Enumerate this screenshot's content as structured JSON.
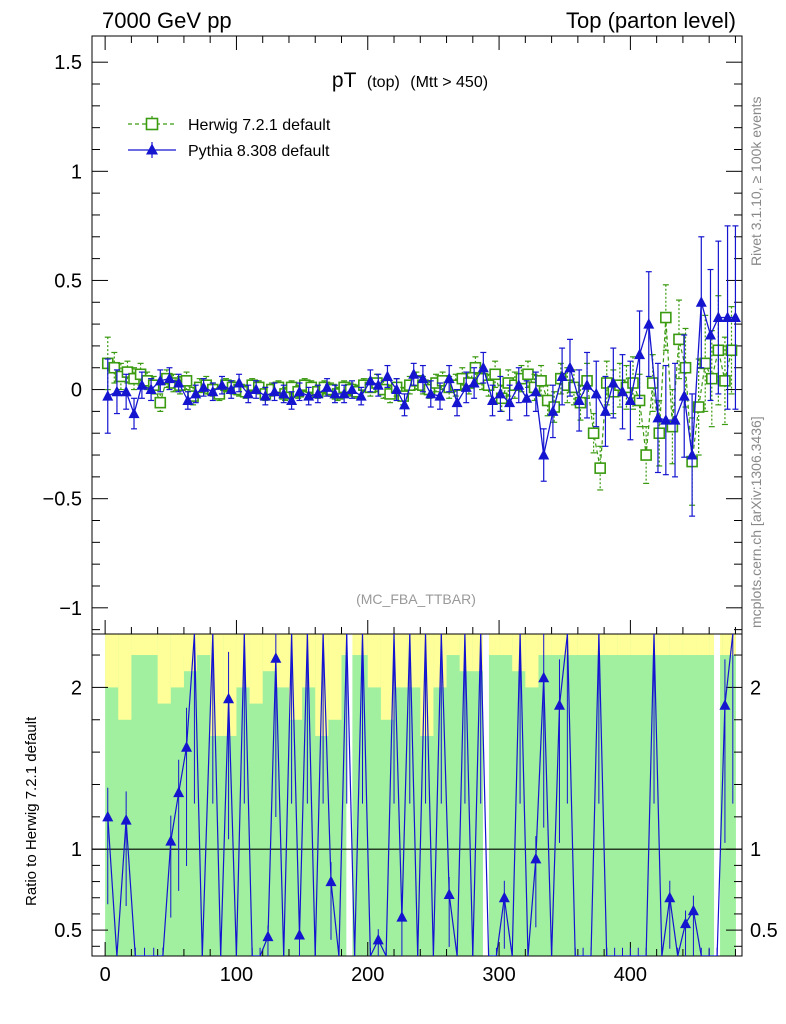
{
  "header": {
    "left": "7000 GeV pp",
    "right": "Top (parton level)"
  },
  "side_text": {
    "rivet": "Rivet 3.1.10, ≥ 100k events",
    "mcplots": "mcplots.cern.ch [arXiv:1306.3436]"
  },
  "analysis_id": "(MC_FBA_TTBAR)",
  "colors": {
    "herwig": "#3a9a10",
    "pythia": "#1515d0",
    "band_green": "#a0f0a0",
    "band_yellow": "#ffff99"
  },
  "chart_data": [
    {
      "type": "scatter",
      "title": {
        "main": "pT",
        "sub1": "(top)",
        "sub2": "(Mtt > 450)"
      },
      "xlim": [
        -10,
        485
      ],
      "ylim": [
        -1.12,
        1.62
      ],
      "yticks": [
        1.5,
        1,
        0.5,
        0,
        -0.5,
        -1
      ],
      "ytick_labels": [
        "1.5",
        "1",
        "0.5",
        "0",
        "−0.5",
        "−1"
      ],
      "legend": {
        "placement": "top-left"
      },
      "series": [
        {
          "name": "Herwig 7.2.1 default",
          "marker": "open-square",
          "line": "dashed",
          "x": [
            2,
            7,
            12,
            17,
            22,
            27,
            32,
            37,
            42,
            47,
            52,
            57,
            62,
            67,
            72,
            77,
            82,
            87,
            92,
            97,
            102,
            107,
            112,
            117,
            122,
            127,
            132,
            137,
            142,
            147,
            152,
            157,
            162,
            167,
            172,
            177,
            182,
            187,
            192,
            197,
            202,
            207,
            212,
            217,
            222,
            227,
            232,
            237,
            242,
            247,
            252,
            257,
            262,
            267,
            272,
            277,
            282,
            287,
            292,
            297,
            302,
            307,
            312,
            317,
            322,
            327,
            332,
            337,
            342,
            347,
            352,
            357,
            362,
            367,
            372,
            377,
            382,
            387,
            392,
            397,
            402,
            407,
            412,
            417,
            422,
            427,
            432,
            437,
            442,
            447,
            452,
            457,
            462,
            467,
            472,
            477
          ],
          "y": [
            0.12,
            0.1,
            0.06,
            0.08,
            0.05,
            0.07,
            0.04,
            0.02,
            -0.06,
            0.05,
            0.03,
            0.02,
            0.04,
            -0.03,
            0.01,
            0.02,
            0.0,
            -0.02,
            0.02,
            0.01,
            0.0,
            -0.01,
            0.02,
            0.01,
            -0.02,
            0.0,
            0.01,
            -0.02,
            0.01,
            -0.01,
            0.02,
            0.01,
            -0.01,
            0.01,
            0.0,
            -0.02,
            0.01,
            0.0,
            -0.01,
            0.02,
            0.01,
            0.03,
            0.0,
            -0.02,
            0.01,
            -0.03,
            0.02,
            0.04,
            0.02,
            0.0,
            0.03,
            0.04,
            0.01,
            0.02,
            0.05,
            0.03,
            0.1,
            0.05,
            0.02,
            0.07,
            -0.04,
            0.03,
            0.02,
            0.05,
            0.07,
            0.01,
            0.04,
            -0.05,
            -0.08,
            0.05,
            0.02,
            0.01,
            -0.06,
            0.04,
            -0.2,
            -0.36,
            0.03,
            -0.01,
            0.02,
            0.01,
            0.03,
            -0.05,
            -0.3,
            0.03,
            -0.2,
            0.33,
            -0.17,
            0.23,
            0.1,
            -0.33,
            -0.08,
            0.12,
            0.05,
            0.18,
            0.04,
            0.18
          ],
          "err": [
            0.12,
            0.07,
            0.06,
            0.05,
            0.05,
            0.05,
            0.04,
            0.04,
            0.04,
            0.04,
            0.04,
            0.04,
            0.04,
            0.04,
            0.04,
            0.04,
            0.03,
            0.03,
            0.03,
            0.03,
            0.03,
            0.03,
            0.03,
            0.03,
            0.03,
            0.03,
            0.03,
            0.03,
            0.03,
            0.03,
            0.03,
            0.03,
            0.03,
            0.03,
            0.03,
            0.03,
            0.03,
            0.03,
            0.03,
            0.03,
            0.04,
            0.04,
            0.04,
            0.04,
            0.04,
            0.04,
            0.04,
            0.04,
            0.04,
            0.04,
            0.04,
            0.04,
            0.05,
            0.05,
            0.05,
            0.05,
            0.05,
            0.05,
            0.05,
            0.06,
            0.06,
            0.06,
            0.06,
            0.06,
            0.06,
            0.06,
            0.07,
            0.07,
            0.07,
            0.07,
            0.08,
            0.08,
            0.08,
            0.08,
            0.09,
            0.1,
            0.1,
            0.1,
            0.1,
            0.1,
            0.12,
            0.12,
            0.13,
            0.13,
            0.15,
            0.15,
            0.17,
            0.18,
            0.18,
            0.2,
            0.22,
            0.22,
            0.22,
            0.25,
            0.2,
            0.2
          ]
        },
        {
          "name": "Pythia 8.308 default",
          "marker": "filled-triangle",
          "line": "solid",
          "x": [
            2,
            9,
            16,
            22,
            28,
            35,
            42,
            49,
            56,
            63,
            69,
            75,
            82,
            89,
            96,
            102,
            109,
            115,
            122,
            129,
            136,
            142,
            148,
            155,
            162,
            169,
            175,
            182,
            188,
            195,
            202,
            208,
            215,
            222,
            228,
            235,
            242,
            248,
            255,
            262,
            268,
            275,
            281,
            288,
            295,
            301,
            308,
            315,
            321,
            328,
            334,
            341,
            348,
            354,
            361,
            367,
            374,
            381,
            387,
            394,
            400,
            407,
            414,
            421,
            427,
            434,
            441,
            447,
            454,
            461,
            467,
            474,
            480
          ],
          "y": [
            -0.03,
            -0.01,
            -0.01,
            -0.11,
            0.02,
            0.0,
            0.04,
            0.05,
            0.03,
            -0.05,
            -0.02,
            0.01,
            -0.01,
            0.02,
            0.0,
            0.03,
            -0.02,
            0.0,
            -0.03,
            -0.01,
            -0.02,
            -0.05,
            -0.01,
            -0.03,
            -0.02,
            0.01,
            -0.02,
            -0.02,
            0.0,
            -0.03,
            0.04,
            0.02,
            0.06,
            0.0,
            -0.07,
            0.07,
            0.05,
            -0.02,
            -0.03,
            0.05,
            -0.06,
            0.01,
            0.03,
            0.1,
            -0.05,
            -0.02,
            -0.06,
            0.02,
            -0.04,
            -0.01,
            -0.3,
            -0.1,
            0.06,
            0.1,
            -0.05,
            0.02,
            -0.02,
            -0.1,
            0.03,
            -0.01,
            -0.05,
            0.16,
            0.3,
            -0.13,
            -0.14,
            -0.14,
            -0.03,
            -0.3,
            0.4,
            0.25,
            0.33,
            0.33,
            0.33
          ],
          "err": [
            0.17,
            0.1,
            0.08,
            0.07,
            0.06,
            0.05,
            0.05,
            0.05,
            0.04,
            0.04,
            0.04,
            0.04,
            0.04,
            0.04,
            0.04,
            0.04,
            0.04,
            0.04,
            0.04,
            0.04,
            0.04,
            0.04,
            0.04,
            0.04,
            0.04,
            0.04,
            0.04,
            0.04,
            0.04,
            0.04,
            0.05,
            0.05,
            0.05,
            0.05,
            0.05,
            0.05,
            0.06,
            0.06,
            0.06,
            0.06,
            0.06,
            0.07,
            0.07,
            0.07,
            0.07,
            0.08,
            0.08,
            0.08,
            0.08,
            0.09,
            0.12,
            0.12,
            0.13,
            0.13,
            0.14,
            0.15,
            0.15,
            0.16,
            0.16,
            0.17,
            0.18,
            0.2,
            0.24,
            0.25,
            0.25,
            0.26,
            0.28,
            0.28,
            0.3,
            0.3,
            0.35,
            0.42,
            0.42
          ]
        }
      ]
    },
    {
      "type": "line",
      "ylabel": "Ratio to Herwig 7.2.1 default",
      "xlim": [
        -10,
        485
      ],
      "ylim": [
        0.34,
        2.33
      ],
      "xticks": [
        0,
        100,
        200,
        300,
        400
      ],
      "xtick_labels": [
        "0",
        "100",
        "200",
        "300",
        "400"
      ],
      "yticks": [
        0.5,
        1,
        2
      ],
      "ytick_labels": [
        "0.5",
        "1",
        "2"
      ],
      "band": {
        "x": [
          0,
          10,
          20,
          30,
          40,
          50,
          60,
          70,
          80,
          90,
          100,
          110,
          120,
          130,
          140,
          150,
          160,
          170,
          180,
          190,
          200,
          210,
          220,
          230,
          240,
          250,
          260,
          270,
          280,
          290,
          300,
          310,
          320,
          330,
          340,
          350,
          360,
          370,
          380,
          390,
          400,
          410,
          420,
          430,
          440,
          450,
          460,
          470
        ],
        "green_upper": [
          2.33,
          2.33,
          2.33,
          2.33,
          2.33,
          2.33,
          2.2,
          2.33,
          2.33,
          2.33,
          2.33,
          2.33,
          2.33,
          2.33,
          2.33,
          2.33,
          2.33,
          2.33,
          2.33,
          2.33,
          2.33,
          2.33,
          2.33,
          2.33,
          2.33,
          2.33,
          2.33,
          2.33,
          2.33,
          2.33,
          2.33,
          2.33,
          2.33,
          2.33,
          2.33,
          2.33,
          2.33,
          2.33,
          2.33,
          2.33,
          2.33,
          2.33,
          2.33,
          2.33,
          2.33,
          2.33,
          2.33,
          2.33
        ],
        "yellow_upper": [
          2.33,
          2.33,
          2.33,
          2.33,
          2.33,
          2.33,
          2.33,
          2.33,
          2.33,
          2.33,
          2.33,
          2.33,
          2.33,
          2.33,
          2.33,
          2.33,
          2.33,
          2.33,
          2.33,
          2.33,
          2.33,
          2.33,
          2.33,
          2.33,
          2.33,
          2.33,
          2.33,
          2.33,
          2.33,
          2.33,
          2.33,
          2.33,
          2.33,
          2.33,
          2.33,
          2.33,
          2.33,
          2.33,
          2.33,
          2.33,
          2.33,
          2.33,
          2.33,
          2.33,
          2.33,
          2.33,
          2.33,
          2.33
        ],
        "yellow_lower": [
          2.0,
          1.8,
          2.2,
          2.2,
          1.9,
          2.0,
          2.1,
          2.2,
          1.7,
          1.7,
          2.0,
          1.9,
          2.1,
          2.0,
          1.8,
          2.0,
          1.7,
          1.8,
          2.2,
          2.2,
          2.0,
          1.8,
          2.0,
          2.0,
          1.7,
          2.0,
          2.2,
          2.1,
          2.1,
          2.2,
          2.2,
          2.1,
          2.0,
          2.2,
          2.2,
          2.2,
          2.2,
          2.2,
          2.2,
          2.2,
          2.2,
          2.2,
          2.2,
          2.2,
          2.2,
          2.2,
          2.2,
          2.2
        ]
      },
      "gaps_x": [
        186,
        290,
        466
      ],
      "series": [
        {
          "marker": "filled-triangle",
          "x": [
            2,
            9,
            16,
            23,
            30,
            37,
            44,
            50,
            56,
            62,
            68,
            74,
            82,
            88,
            94,
            100,
            106,
            112,
            118,
            124,
            130,
            136,
            142,
            148,
            154,
            160,
            166,
            172,
            178,
            184,
            190,
            196,
            202,
            208,
            214,
            220,
            226,
            232,
            238,
            244,
            250,
            256,
            262,
            268,
            274,
            280,
            286,
            292,
            298,
            304,
            310,
            316,
            322,
            328,
            334,
            340,
            346,
            352,
            358,
            364,
            370,
            376,
            382,
            388,
            394,
            400,
            406,
            412,
            418,
            424,
            430,
            436,
            442,
            448,
            454,
            460,
            466,
            472,
            478
          ],
          "y": [
            1.2,
            0.34,
            1.18,
            0.34,
            0.34,
            0.34,
            0.34,
            1.05,
            1.35,
            1.63,
            2.33,
            0.34,
            2.33,
            0.34,
            1.93,
            0.34,
            2.33,
            0.34,
            0.34,
            0.46,
            2.18,
            0.34,
            2.33,
            0.47,
            2.33,
            0.34,
            2.33,
            0.8,
            0.34,
            2.33,
            0.34,
            2.33,
            0.34,
            0.44,
            0.34,
            2.33,
            0.58,
            2.33,
            0.34,
            2.33,
            0.34,
            2.33,
            0.72,
            0.34,
            2.33,
            0.34,
            2.33,
            0.34,
            0.34,
            0.7,
            0.34,
            2.33,
            0.34,
            0.94,
            2.06,
            0.34,
            1.89,
            2.33,
            0.34,
            0.34,
            0.34,
            2.33,
            0.34,
            0.34,
            0.34,
            0.34,
            0.34,
            0.34,
            2.33,
            0.34,
            0.7,
            0.34,
            0.54,
            0.62,
            0.34,
            0.34,
            0.34,
            1.89,
            2.33
          ]
        }
      ]
    }
  ]
}
